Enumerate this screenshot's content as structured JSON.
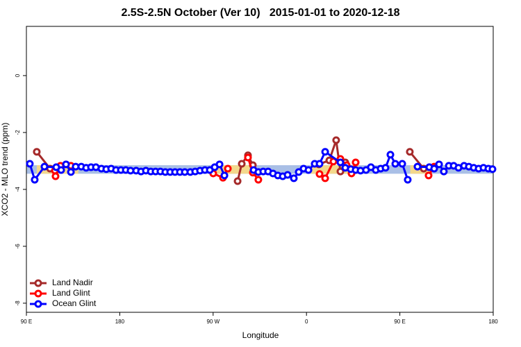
{
  "chart_data": {
    "type": "line",
    "title": "2.5S-2.5N October (Ver 10)   2015-01-01 to 2020-12-18",
    "x_label": "Longitude",
    "y_label": "XCO2 - MLO trend (ppm)",
    "xlim": [
      90,
      540
    ],
    "xticks": [
      {
        "value": 90,
        "label": "90 E"
      },
      {
        "value": 180,
        "label": "180"
      },
      {
        "value": 270,
        "label": "90 W"
      },
      {
        "value": 360,
        "label": "0"
      },
      {
        "value": 450,
        "label": "90 E"
      },
      {
        "value": 540,
        "label": "180"
      }
    ],
    "ylim": [
      -8.32,
      1.73
    ],
    "yticks": [
      0,
      -2,
      -4,
      -6,
      -8
    ],
    "legend": "bottom-left",
    "band": {
      "ylim": [
        -3.45,
        -3.15
      ],
      "color": "#a9bfe6",
      "land_color": "#f3d88c",
      "land_segments": [
        [
          100,
          140
        ],
        [
          268,
          310
        ],
        [
          364,
          410
        ],
        [
          460,
          480
        ]
      ]
    },
    "series": [
      {
        "name": "Land Nadir",
        "color": "#a52a2a",
        "x": [
          100.0,
          112.8,
          null,
          293.6,
          297.6,
          303.6,
          308.3,
          null,
          371.9,
          382.0,
          388.6,
          392.7,
          397.4,
          null,
          459.6,
          473.0
        ],
        "values": [
          -2.68,
          -3.27,
          null,
          -3.71,
          -3.1,
          -2.8,
          -3.15,
          null,
          -3.12,
          -2.98,
          -2.27,
          -3.37,
          -3.05,
          null,
          -2.68,
          -3.27
        ]
      },
      {
        "name": "Land Glint",
        "color": "#ff0000",
        "x": [
          117.5,
          118.1,
          122.8,
          132.9,
          null,
          270.1,
          279.5,
          284.2,
          null,
          303.6,
          308.3,
          313.6,
          null,
          372.6,
          378.0,
          386.0,
          392.7,
          398.7,
          403.4,
          407.4,
          null,
          477.7,
          483.1
        ],
        "values": [
          -3.34,
          -3.54,
          -3.17,
          -3.17,
          null,
          -3.44,
          -3.59,
          -3.27,
          null,
          -2.88,
          -3.41,
          -3.66,
          null,
          -3.46,
          -3.61,
          -3.02,
          -2.93,
          -3.15,
          -3.44,
          -3.05,
          null,
          -3.51,
          -3.2
        ]
      },
      {
        "name": "Ocean Glint",
        "color": "#0000ff",
        "x": [
          93.3,
          98.0,
          107.4,
          118.8,
          123.5,
          128.2,
          132.9,
          137.5,
          142.9,
          147.6,
          152.3,
          157.0,
          162.3,
          167.0,
          171.7,
          176.4,
          181.1,
          185.8,
          190.4,
          195.8,
          200.5,
          205.2,
          209.9,
          214.5,
          219.2,
          223.9,
          228.6,
          233.3,
          238.0,
          242.7,
          248.0,
          252.7,
          257.4,
          262.1,
          266.8,
          271.5,
          276.2,
          280.9,
          null,
          309.0,
          313.6,
          318.3,
          323.0,
          327.7,
          332.4,
          337.1,
          341.8,
          347.8,
          352.5,
          357.2,
          361.9,
          367.9,
          372.6,
          378.0,
          392.7,
          397.4,
          402.7,
          407.4,
          412.1,
          417.4,
          422.1,
          426.8,
          431.5,
          436.2,
          440.9,
          445.6,
          452.3,
          457.6,
          null,
          467.0,
          478.4,
          483.1,
          487.8,
          492.4,
          497.2,
          501.9,
          506.5,
          511.9,
          516.5,
          521.2,
          525.9,
          530.6,
          535.3,
          539.3
        ],
        "values": [
          -3.1,
          -3.66,
          -3.2,
          -3.22,
          -3.32,
          -3.12,
          -3.39,
          -3.2,
          -3.2,
          -3.24,
          -3.22,
          -3.22,
          -3.27,
          -3.29,
          -3.27,
          -3.32,
          -3.32,
          -3.32,
          -3.34,
          -3.34,
          -3.37,
          -3.34,
          -3.37,
          -3.37,
          -3.37,
          -3.39,
          -3.39,
          -3.39,
          -3.39,
          -3.39,
          -3.39,
          -3.37,
          -3.34,
          -3.32,
          -3.32,
          -3.22,
          -3.12,
          -3.51,
          null,
          -3.32,
          -3.39,
          -3.37,
          -3.37,
          -3.44,
          -3.51,
          -3.54,
          -3.49,
          -3.61,
          -3.39,
          -3.27,
          -3.32,
          -3.1,
          -3.1,
          -2.68,
          -3.05,
          -3.24,
          -3.29,
          -3.32,
          -3.34,
          -3.32,
          -3.22,
          -3.32,
          -3.27,
          -3.24,
          -2.78,
          -3.1,
          -3.1,
          -3.66,
          null,
          -3.2,
          -3.22,
          -3.27,
          -3.12,
          -3.37,
          -3.17,
          -3.17,
          -3.24,
          -3.17,
          -3.2,
          -3.24,
          -3.27,
          -3.24,
          -3.27,
          -3.29
        ]
      }
    ]
  }
}
